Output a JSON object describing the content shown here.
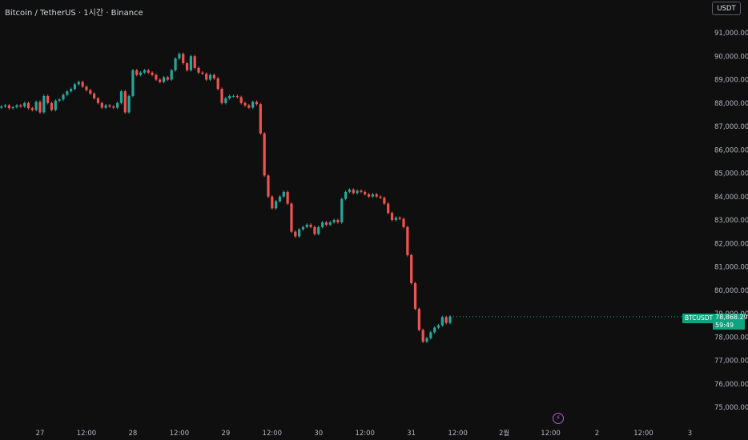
{
  "header": {
    "title": "Bitcoin / TetherUS · 1시간 · Binance"
  },
  "currency_button": {
    "label": "USDT"
  },
  "symbol_badge": {
    "label": "BTCUSDT"
  },
  "price_badge": {
    "price": "78,868.29",
    "countdown": "59:49"
  },
  "icons": {
    "lightning": "lightning-icon"
  },
  "colors": {
    "up": "#26a69a",
    "down": "#ef5350",
    "badge": "#0fa37f",
    "background": "#0f0f0f"
  },
  "chart_data": {
    "type": "candlestick",
    "title": "Bitcoin / TetherUS · 1시간 · Binance",
    "ylim": [
      74600,
      91700
    ],
    "yticks": [
      75000,
      76000,
      77000,
      78000,
      79000,
      80000,
      81000,
      82000,
      83000,
      84000,
      85000,
      86000,
      87000,
      88000,
      89000,
      90000,
      91000
    ],
    "ytick_labels": [
      "75,000.00",
      "76,000.00",
      "77,000.00",
      "78,000.00",
      "79,000.00",
      "80,000.00",
      "81,000.00",
      "82,000.00",
      "83,000.00",
      "84,000.00",
      "85,000.00",
      "86,000.00",
      "87,000.00",
      "88,000.00",
      "89,000.00",
      "90,000.00",
      "91,000.00"
    ],
    "xtick_labels": [
      "27",
      "12:00",
      "28",
      "12:00",
      "29",
      "12:00",
      "30",
      "12:00",
      "31",
      "12:00",
      "2월",
      "12:00",
      "2",
      "12:00",
      "3"
    ],
    "xtick_hours": [
      0,
      12,
      24,
      36,
      48,
      60,
      72,
      84,
      96,
      108,
      120,
      132,
      144,
      156,
      168
    ],
    "start_hour": -11,
    "last_price": 78868.29,
    "closes": [
      87800,
      87850,
      87900,
      87780,
      87820,
      87900,
      87850,
      88000,
      87780,
      87700,
      88050,
      87600,
      88300,
      88000,
      87700,
      88100,
      88150,
      88350,
      88500,
      88600,
      88800,
      88900,
      88700,
      88550,
      88400,
      88200,
      88000,
      87800,
      87900,
      87850,
      87800,
      88000,
      88500,
      87600,
      88300,
      89400,
      89200,
      89300,
      89400,
      89300,
      89200,
      89000,
      88900,
      89100,
      89000,
      89400,
      89900,
      90100,
      89700,
      89400,
      90000,
      89500,
      89300,
      89250,
      89000,
      89200,
      89050,
      88600,
      88000,
      88200,
      88300,
      88300,
      88250,
      88000,
      87900,
      87800,
      88050,
      87950,
      86700,
      84900,
      84000,
      83500,
      83800,
      84000,
      84200,
      83700,
      82500,
      82300,
      82600,
      82700,
      82800,
      82700,
      82400,
      82700,
      82900,
      82800,
      82900,
      83000,
      82900,
      83900,
      84200,
      84300,
      84150,
      84250,
      84200,
      84100,
      84000,
      84100,
      84000,
      83950,
      83700,
      83300,
      83000,
      83100,
      83050,
      82700,
      81500,
      80300,
      79200,
      78300,
      77800,
      77950,
      78200,
      78400,
      78500,
      78850,
      78600,
      78870
    ]
  }
}
